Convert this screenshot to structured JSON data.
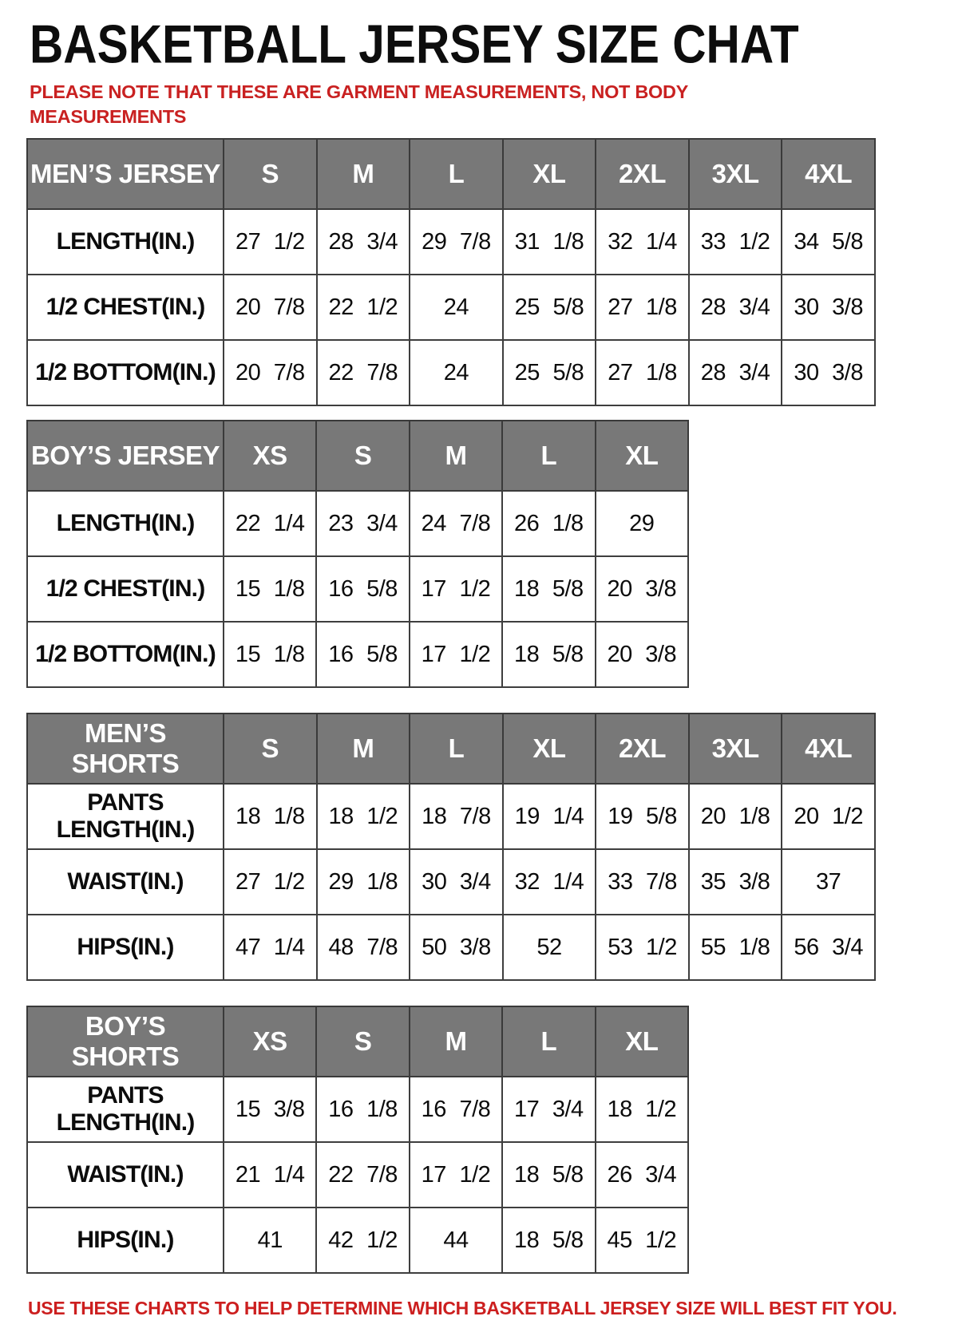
{
  "page": {
    "title": "BASKETBALL JERSEY SIZE CHAT",
    "top_note": "PLEASE NOTE THAT THESE ARE GARMENT MEASUREMENTS, NOT BODY MEASUREMENTS",
    "bottom_note": "USE THESE CHARTS TO HELP DETERMINE WHICH BASKETBALL JERSEY SIZE WILL BEST FIT YOU.",
    "colors": {
      "header_bg": "#787878",
      "header_text": "#ffffff",
      "border": "#3e3e3e",
      "note_red": "#c92121",
      "title_black": "#0d0d0d"
    }
  },
  "chart_data": [
    {
      "type": "table",
      "header": [
        "MEN’S JERSEY",
        "S",
        "M",
        "L",
        "XL",
        "2XL",
        "3XL",
        "4XL"
      ],
      "rows": [
        {
          "label": "LENGTH(IN.)",
          "values": [
            "27 1/2",
            "28 3/4",
            "29 7/8",
            "31 1/8",
            "32 1/4",
            "33 1/2",
            "34 5/8"
          ]
        },
        {
          "label": "1/2 CHEST(IN.)",
          "values": [
            "20 7/8",
            "22 1/2",
            "24",
            "25 5/8",
            "27 1/8",
            "28 3/4",
            "30 3/8"
          ]
        },
        {
          "label": "1/2 BOTTOM(IN.)",
          "values": [
            "20 7/8",
            "22 7/8",
            "24",
            "25 5/8",
            "27 1/8",
            "28 3/4",
            "30 3/8"
          ]
        }
      ]
    },
    {
      "type": "table",
      "header": [
        "BOY’S JERSEY",
        "XS",
        "S",
        "M",
        "L",
        "XL"
      ],
      "rows": [
        {
          "label": "LENGTH(IN.)",
          "values": [
            "22 1/4",
            "23 3/4",
            "24 7/8",
            "26 1/8",
            "29"
          ]
        },
        {
          "label": "1/2 CHEST(IN.)",
          "values": [
            "15 1/8",
            "16 5/8",
            "17 1/2",
            "18 5/8",
            "20 3/8"
          ]
        },
        {
          "label": "1/2 BOTTOM(IN.)",
          "values": [
            "15 1/8",
            "16 5/8",
            "17 1/2",
            "18 5/8",
            "20 3/8"
          ]
        }
      ]
    },
    {
      "type": "table",
      "header": [
        "MEN’S SHORTS",
        "S",
        "M",
        "L",
        "XL",
        "2XL",
        "3XL",
        "4XL"
      ],
      "rows": [
        {
          "label": "PANTS LENGTH(IN.)",
          "values": [
            "18 1/8",
            "18 1/2",
            "18 7/8",
            "19 1/4",
            "19 5/8",
            "20 1/8",
            "20 1/2"
          ]
        },
        {
          "label": "WAIST(IN.)",
          "values": [
            "27 1/2",
            "29 1/8",
            "30 3/4",
            "32 1/4",
            "33 7/8",
            "35 3/8",
            "37"
          ]
        },
        {
          "label": "HIPS(IN.)",
          "values": [
            "47 1/4",
            "48 7/8",
            "50 3/8",
            "52",
            "53 1/2",
            "55 1/8",
            "56 3/4"
          ]
        }
      ]
    },
    {
      "type": "table",
      "header": [
        "BOY’S SHORTS",
        "XS",
        "S",
        "M",
        "L",
        "XL"
      ],
      "rows": [
        {
          "label": "PANTS LENGTH(IN.)",
          "values": [
            "15 3/8",
            "16 1/8",
            "16 7/8",
            "17 3/4",
            "18 1/2"
          ]
        },
        {
          "label": "WAIST(IN.)",
          "values": [
            "21 1/4",
            "22 7/8",
            "17 1/2",
            "18 5/8",
            "26 3/4"
          ]
        },
        {
          "label": "HIPS(IN.)",
          "values": [
            "41",
            "42 1/2",
            "44",
            "18 5/8",
            "45 1/2"
          ]
        }
      ]
    }
  ]
}
